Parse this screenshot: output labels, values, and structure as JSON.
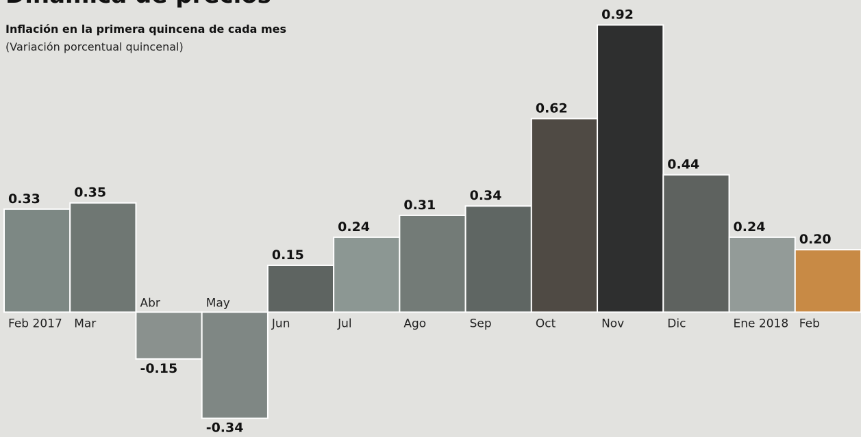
{
  "chart_data": {
    "type": "bar",
    "title": "Dinámica de precios",
    "subtitle": "Inflación en la primera quincena de cada mes",
    "note": "(Variación porcentual quincenal)",
    "categories": [
      "Feb 2017",
      "Mar",
      "Abr",
      "May",
      "Jun",
      "Jul",
      "Ago",
      "Sep",
      "Oct",
      "Nov",
      "Dic",
      "Ene 2018",
      "Feb"
    ],
    "values": [
      0.33,
      0.35,
      -0.15,
      -0.34,
      0.15,
      0.24,
      0.31,
      0.34,
      0.62,
      0.92,
      0.44,
      0.24,
      0.2
    ],
    "value_labels": [
      "0.33",
      "0.35",
      "-0.15",
      "-0.34",
      "0.15",
      "0.24",
      "0.31",
      "0.34",
      "0.62",
      "0.92",
      "0.44",
      "0.24",
      "0.20"
    ],
    "colors": [
      "#7d8884",
      "#6f7773",
      "#8a918e",
      "#7f8784",
      "#5e6461",
      "#8c9793",
      "#737b77",
      "#5f6663",
      "#4f4a44",
      "#2e2f2f",
      "#5e625f",
      "#939b98",
      "#c88a45"
    ],
    "ylim": [
      -0.4,
      1.0
    ]
  }
}
